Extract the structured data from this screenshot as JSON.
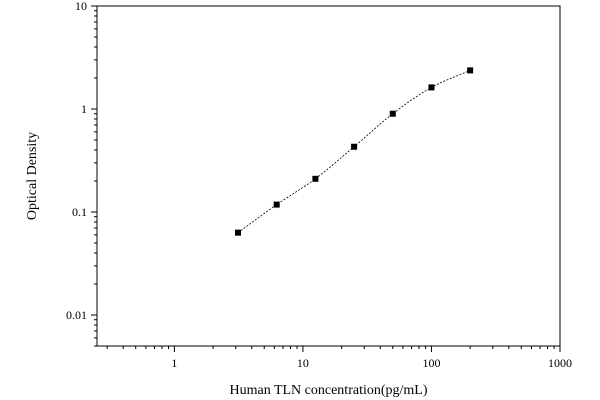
{
  "chart_data": {
    "type": "scatter",
    "title": "",
    "xlabel": "Human TLN concentration(pg/mL)",
    "ylabel": "Optical Density",
    "x_scale": "log",
    "y_scale": "log",
    "xlim": [
      0.25,
      1000
    ],
    "ylim": [
      0.005,
      10
    ],
    "x_tick_labels": [
      "1",
      "10",
      "100",
      "1000"
    ],
    "y_tick_labels": [
      "10",
      "1",
      "0.1",
      "0.01"
    ],
    "x_tick_values": [
      1,
      10,
      100,
      1000
    ],
    "y_tick_values": [
      10,
      1,
      0.1,
      0.01
    ],
    "grid": false,
    "legend": "none",
    "fit_curve": true,
    "series": [
      {
        "x": [
          3.125,
          6.25,
          12.5,
          25,
          50,
          100,
          200
        ],
        "y": [
          0.063,
          0.118,
          0.21,
          0.43,
          0.9,
          1.62,
          2.37
        ]
      }
    ]
  }
}
